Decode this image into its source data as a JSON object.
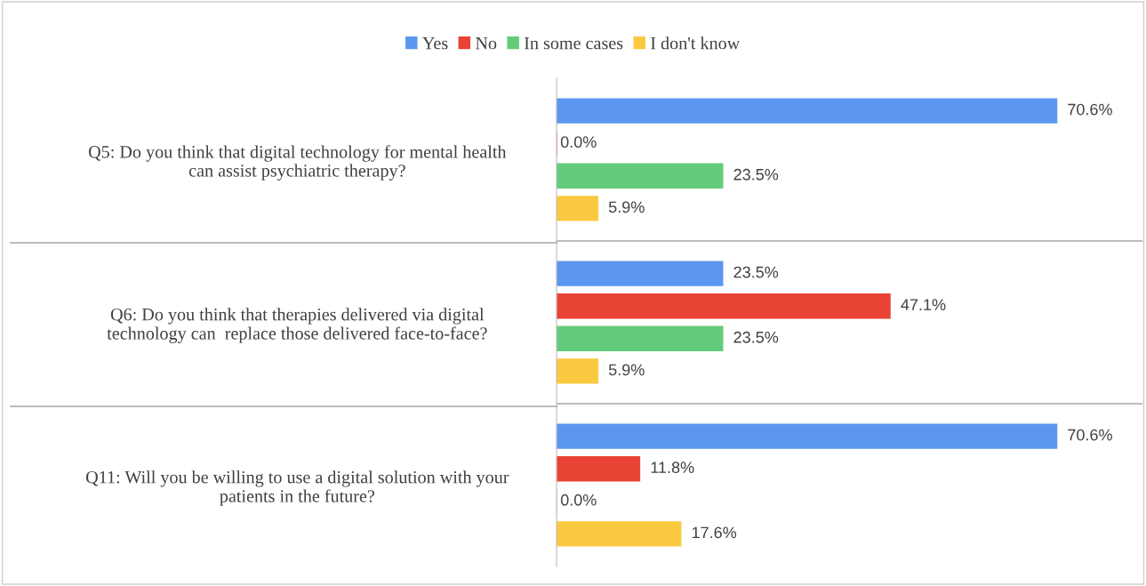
{
  "chart_data": {
    "type": "bar",
    "orientation": "horizontal",
    "categories": [
      "Q5: Do you think that digital technology for mental health\ncan assist psychiatric therapy?",
      "Q6: Do you think that therapies delivered via digital\ntechnology can  replace those delivered face-to-face?",
      "Q11: Will you be willing to use a digital solution with your\npatients in the future?"
    ],
    "series": [
      {
        "name": "Yes",
        "color": "#5b97f0",
        "values": [
          70.6,
          23.5,
          70.6
        ],
        "value_labels": [
          "70.6%",
          "23.5%",
          "70.6%"
        ]
      },
      {
        "name": "No",
        "color": "#e84335",
        "values": [
          0.0,
          47.1,
          11.8
        ],
        "value_labels": [
          "0.0%",
          "47.1%",
          "11.8%"
        ]
      },
      {
        "name": "In some cases",
        "color": "#63cc7a",
        "values": [
          23.5,
          23.5,
          0.0
        ],
        "value_labels": [
          "23.5%",
          "23.5%",
          "0.0%"
        ]
      },
      {
        "name": "I don't know",
        "color": "#fbc940",
        "values": [
          5.9,
          5.9,
          17.6
        ],
        "value_labels": [
          "5.9%",
          "5.9%",
          "17.6%"
        ]
      }
    ],
    "legend": "top"
  }
}
